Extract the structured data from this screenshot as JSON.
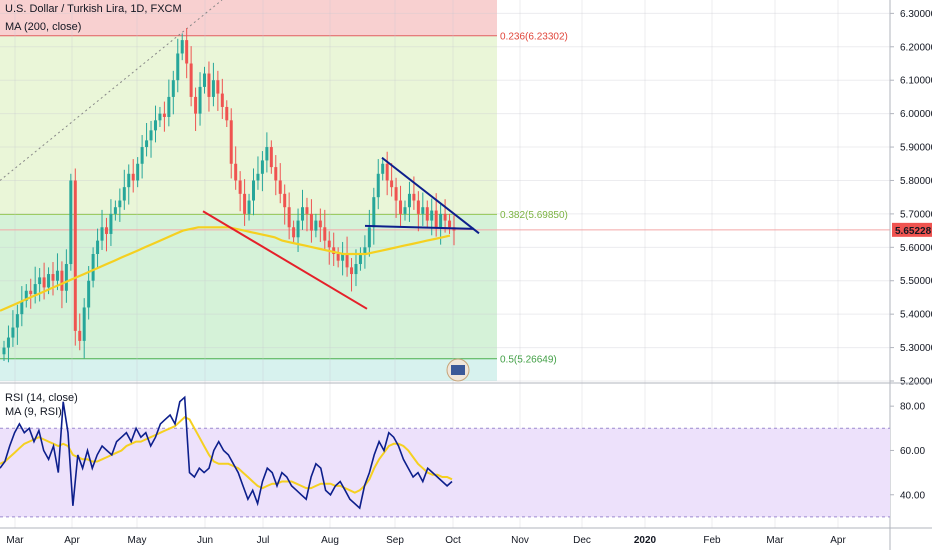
{
  "header": {
    "symbol_title": "U.S. Dollar / Turkish Lira, 1D, FXCM",
    "ma_legend": "MA (200, close)",
    "rsi_legend": "RSI (14, close)",
    "rsi_ma_legend": "MA (9, RSI)"
  },
  "colors": {
    "up": "#26a69a",
    "down": "#ef5350",
    "ma200": "#f5d020",
    "rsi": "#0d1f8c",
    "rsi_ma": "#f5d020",
    "rsi_band": "#ede1fb",
    "fib_top": "#f8d0d0",
    "fib_mid": "#eaf6d8",
    "fib_low": "#d5f2d8",
    "fib_bottom": "#d7f2ee",
    "wedge_upper": "#0d1f8c",
    "wedge_lower": "#e5202a"
  },
  "chart_data": [
    {
      "type": "candlestick",
      "title": "U.S. Dollar / Turkish Lira, 1D, FXCM",
      "price_axis": {
        "ticks": [
          "6.30000",
          "6.20000",
          "6.10000",
          "6.00000",
          "5.90000",
          "5.80000",
          "5.70000",
          "5.60000",
          "5.50000",
          "5.40000",
          "5.30000",
          "5.20000"
        ],
        "range": [
          5.2,
          6.34
        ]
      },
      "time_axis": {
        "ticks": [
          "Mar",
          "Apr",
          "May",
          "Jun",
          "Jul",
          "Aug",
          "Sep",
          "Oct",
          "Nov",
          "Dec",
          "2020",
          "Feb",
          "Mar",
          "Apr"
        ]
      },
      "last_price": "5.65228",
      "fib_levels": [
        {
          "label": "0.236(6.23302)",
          "value": 6.23302
        },
        {
          "label": "0.382(5.69850)",
          "value": 5.6985
        },
        {
          "label": "0.5(5.26649)",
          "value": 5.26649
        }
      ],
      "series_closes": [
        5.3,
        5.33,
        5.36,
        5.4,
        5.44,
        5.47,
        5.46,
        5.49,
        5.51,
        5.48,
        5.52,
        5.5,
        5.53,
        5.47,
        5.55,
        5.8,
        5.35,
        5.32,
        5.42,
        5.5,
        5.58,
        5.62,
        5.66,
        5.64,
        5.7,
        5.72,
        5.74,
        5.78,
        5.82,
        5.8,
        5.85,
        5.9,
        5.92,
        5.95,
        5.98,
        6.0,
        5.99,
        6.05,
        6.1,
        6.18,
        6.22,
        6.15,
        6.05,
        6.0,
        6.08,
        6.12,
        6.05,
        6.1,
        6.06,
        6.02,
        5.98,
        5.85,
        5.8,
        5.76,
        5.7,
        5.74,
        5.8,
        5.82,
        5.86,
        5.9,
        5.84,
        5.8,
        5.76,
        5.72,
        5.66,
        5.63,
        5.68,
        5.72,
        5.7,
        5.65,
        5.68,
        5.66,
        5.62,
        5.6,
        5.58,
        5.56,
        5.58,
        5.54,
        5.52,
        5.55,
        5.58,
        5.6,
        5.66,
        5.75,
        5.82,
        5.85,
        5.8,
        5.78,
        5.74,
        5.7,
        5.72,
        5.76,
        5.74,
        5.7,
        5.72,
        5.68,
        5.71,
        5.66,
        5.7,
        5.68,
        5.66,
        5.65
      ],
      "ma200": [
        5.41,
        5.42,
        5.43,
        5.44,
        5.45,
        5.46,
        5.47,
        5.48,
        5.49,
        5.5,
        5.51,
        5.52,
        5.53,
        5.54,
        5.55,
        5.56,
        5.57,
        5.58,
        5.59,
        5.6,
        5.61,
        5.62,
        5.63,
        5.64,
        5.65,
        5.655,
        5.66,
        5.66,
        5.66,
        5.66,
        5.66,
        5.655,
        5.65,
        5.645,
        5.64,
        5.635,
        5.63,
        5.62,
        5.615,
        5.61,
        5.605,
        5.6,
        5.595,
        5.59,
        5.585,
        5.58,
        5.58,
        5.58,
        5.58,
        5.585,
        5.59,
        5.595,
        5.6,
        5.605,
        5.61,
        5.615,
        5.62,
        5.625,
        5.63,
        5.635
      ],
      "annotations": [
        {
          "type": "trendline",
          "name": "upper-wedge-line"
        },
        {
          "type": "trendline",
          "name": "lower-wedge-line"
        },
        {
          "type": "trendline",
          "name": "support-line"
        },
        {
          "type": "trendline",
          "name": "falling-trendline"
        }
      ]
    },
    {
      "type": "line",
      "title": "RSI (14, close)",
      "y_ticks": [
        "80.00",
        "60.00",
        "40.00"
      ],
      "ylim": [
        25,
        90
      ],
      "band": [
        30,
        70
      ],
      "series": [
        {
          "name": "RSI (14, close)",
          "values": [
            52,
            55,
            62,
            68,
            72,
            68,
            70,
            64,
            69,
            60,
            56,
            62,
            50,
            82,
            68,
            35,
            58,
            52,
            60,
            52,
            58,
            62,
            60,
            58,
            64,
            66,
            68,
            64,
            70,
            66,
            68,
            62,
            66,
            72,
            74,
            76,
            72,
            82,
            84,
            50,
            48,
            52,
            50,
            52,
            60,
            64,
            60,
            58,
            54,
            50,
            44,
            38,
            42,
            36,
            46,
            52,
            50,
            44,
            50,
            48,
            44,
            42,
            40,
            38,
            48,
            54,
            52,
            42,
            40,
            44,
            46,
            42,
            38,
            36,
            34,
            44,
            50,
            58,
            64,
            60,
            68,
            66,
            62,
            56,
            52,
            48,
            50,
            46,
            52,
            50,
            48,
            46,
            44,
            46
          ]
        },
        {
          "name": "MA (9, RSI)",
          "values": [
            54,
            55,
            57,
            59,
            61,
            63,
            64,
            65,
            66,
            65,
            64,
            63,
            62,
            63,
            62,
            58,
            57,
            56,
            56,
            55,
            55,
            56,
            57,
            58,
            59,
            60,
            62,
            63,
            64,
            64,
            65,
            66,
            67,
            68,
            69,
            70,
            71,
            73,
            75,
            74,
            70,
            66,
            62,
            58,
            55,
            54,
            54,
            54,
            53,
            52,
            50,
            48,
            46,
            44,
            43,
            44,
            45,
            45,
            46,
            46,
            46,
            45,
            44,
            43,
            43,
            44,
            45,
            45,
            45,
            44,
            44,
            43,
            42,
            41,
            42,
            44,
            47,
            52,
            56,
            59,
            62,
            63,
            63,
            62,
            60,
            57,
            54,
            52,
            50,
            49,
            49,
            48,
            48,
            47
          ]
        }
      ]
    }
  ]
}
